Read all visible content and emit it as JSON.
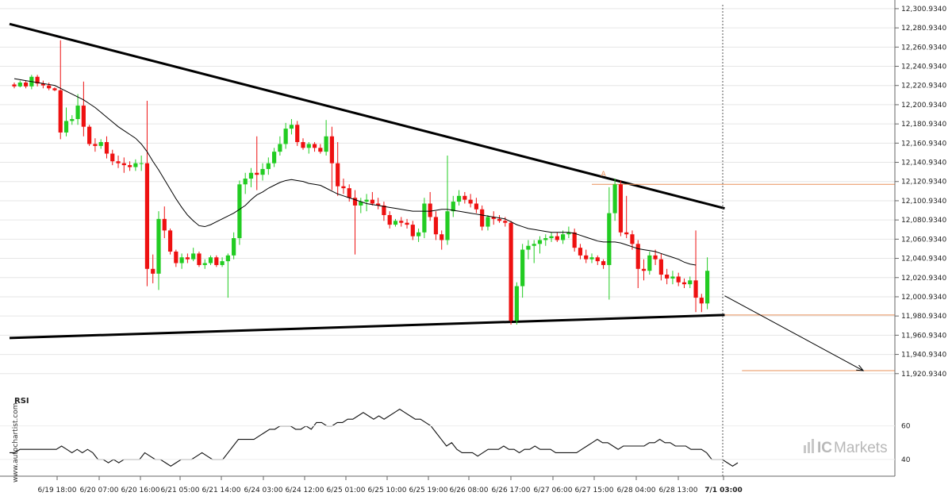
{
  "chart_data": [
    {
      "type": "candlestick",
      "y_axis_side": "right",
      "ylim": [
        11910,
        12305
      ],
      "y_ticks": [
        "12,300.9340",
        "12,280.9340",
        "12,260.9340",
        "12,240.9340",
        "12,220.9340",
        "12,200.9340",
        "12,180.9340",
        "12,160.9340",
        "12,140.9340",
        "12,120.9340",
        "12,100.9340",
        "12,080.9340",
        "12,060.9340",
        "12,040.9340",
        "12,020.9340",
        "12,000.9340",
        "11,980.9340",
        "11,960.9340",
        "11,940.9340",
        "11,920.9340"
      ],
      "x_ticks": [
        "6/19 18:00",
        "6/20 07:00",
        "6/20 16:00",
        "6/21 05:00",
        "6/21 14:00",
        "6/24 03:00",
        "6/24 12:00",
        "6/25 01:00",
        "6/25 10:00",
        "6/25 19:00",
        "6/26 08:00",
        "6/26 17:00",
        "6/27 06:00",
        "6/27 15:00",
        "6/28 04:00",
        "6/28 13:00",
        "7/1 03:00"
      ],
      "highlight_x_tick": "7/1 03:00",
      "up_color": "#22cc22",
      "down_color": "#ee1111",
      "moving_average_color": "#000000",
      "candles": [
        [
          12222,
          12224,
          12218,
          12220
        ],
        [
          12220,
          12226,
          12219,
          12224
        ],
        [
          12224,
          12226,
          12218,
          12220
        ],
        [
          12220,
          12232,
          12217,
          12230
        ],
        [
          12230,
          12232,
          12220,
          12223
        ],
        [
          12223,
          12226,
          12218,
          12221
        ],
        [
          12221,
          12224,
          12216,
          12218
        ],
        [
          12218,
          12219,
          12215,
          12216
        ],
        [
          12216,
          12268,
          12165,
          12172
        ],
        [
          12172,
          12198,
          12168,
          12184
        ],
        [
          12184,
          12190,
          12180,
          12186
        ],
        [
          12186,
          12212,
          12180,
          12200
        ],
        [
          12200,
          12225,
          12168,
          12178
        ],
        [
          12178,
          12180,
          12158,
          12160
        ],
        [
          12160,
          12166,
          12152,
          12158
        ],
        [
          12158,
          12165,
          12155,
          12162
        ],
        [
          12162,
          12168,
          12145,
          12150
        ],
        [
          12150,
          12154,
          12138,
          12142
        ],
        [
          12142,
          12148,
          12135,
          12140
        ],
        [
          12140,
          12146,
          12130,
          12138
        ],
        [
          12138,
          12142,
          12132,
          12136
        ],
        [
          12136,
          12144,
          12132,
          12140
        ],
        [
          12140,
          12148,
          12132,
          12140
        ],
        [
          12140,
          12205,
          12012,
          12030
        ],
        [
          12030,
          12045,
          12015,
          12025
        ],
        [
          12025,
          12090,
          12008,
          12082
        ],
        [
          12082,
          12095,
          12062,
          12070
        ],
        [
          12070,
          12072,
          12045,
          12048
        ],
        [
          12048,
          12050,
          12032,
          12036
        ],
        [
          12036,
          12046,
          12030,
          12042
        ],
        [
          12042,
          12046,
          12036,
          12040
        ],
        [
          12040,
          12052,
          12038,
          12046
        ],
        [
          12046,
          12048,
          12032,
          12034
        ],
        [
          12034,
          12040,
          12030,
          12036
        ],
        [
          12036,
          12044,
          12034,
          12042
        ],
        [
          12042,
          12044,
          12032,
          12034
        ],
        [
          12034,
          12042,
          12032,
          12038
        ],
        [
          12038,
          12046,
          12000,
          12044
        ],
        [
          12044,
          12068,
          12040,
          12062
        ],
        [
          12062,
          12122,
          12055,
          12118
        ],
        [
          12118,
          12130,
          12108,
          12124
        ],
        [
          12124,
          12135,
          12115,
          12130
        ],
        [
          12130,
          12168,
          12112,
          12128
        ],
        [
          12128,
          12140,
          12122,
          12134
        ],
        [
          12134,
          12146,
          12128,
          12140
        ],
        [
          12140,
          12156,
          12136,
          12152
        ],
        [
          12152,
          12168,
          12148,
          12160
        ],
        [
          12160,
          12182,
          12155,
          12176
        ],
        [
          12176,
          12186,
          12170,
          12180
        ],
        [
          12180,
          12184,
          12158,
          12162
        ],
        [
          12162,
          12166,
          12154,
          12156
        ],
        [
          12156,
          12162,
          12150,
          12160
        ],
        [
          12160,
          12162,
          12152,
          12156
        ],
        [
          12156,
          12160,
          12150,
          12152
        ],
        [
          12152,
          12185,
          12148,
          12168
        ],
        [
          12168,
          12178,
          12112,
          12140
        ],
        [
          12140,
          12162,
          12106,
          12116
        ],
        [
          12116,
          12124,
          12108,
          12114
        ],
        [
          12114,
          12118,
          12100,
          12104
        ],
        [
          12104,
          12112,
          12045,
          12096
        ],
        [
          12096,
          12104,
          12088,
          12100
        ],
        [
          12100,
          12108,
          12090,
          12102
        ],
        [
          12102,
          12110,
          12096,
          12098
        ],
        [
          12098,
          12104,
          12092,
          12096
        ],
        [
          12096,
          12100,
          12080,
          12086
        ],
        [
          12086,
          12090,
          12072,
          12076
        ],
        [
          12076,
          12082,
          12074,
          12080
        ],
        [
          12080,
          12084,
          12074,
          12078
        ],
        [
          12078,
          12082,
          12072,
          12076
        ],
        [
          12076,
          12080,
          12060,
          12064
        ],
        [
          12064,
          12072,
          12058,
          12068
        ],
        [
          12068,
          12104,
          12062,
          12098
        ],
        [
          12098,
          12110,
          12080,
          12084
        ],
        [
          12084,
          12090,
          12060,
          12066
        ],
        [
          12066,
          12070,
          12050,
          12060
        ],
        [
          12060,
          12148,
          12055,
          12090
        ],
        [
          12090,
          12106,
          12084,
          12100
        ],
        [
          12100,
          12112,
          12096,
          12106
        ],
        [
          12106,
          12110,
          12098,
          12102
        ],
        [
          12102,
          12108,
          12094,
          12098
        ],
        [
          12098,
          12104,
          12088,
          12092
        ],
        [
          12092,
          12096,
          12070,
          12074
        ],
        [
          12074,
          12086,
          12070,
          12084
        ],
        [
          12084,
          12090,
          12076,
          12082
        ],
        [
          12082,
          12086,
          12078,
          12080
        ],
        [
          12080,
          12084,
          12074,
          12078
        ],
        [
          12078,
          12080,
          11972,
          11976
        ],
        [
          11976,
          12016,
          11972,
          12012
        ],
        [
          12012,
          12056,
          12000,
          12050
        ],
        [
          12050,
          12060,
          12040,
          12054
        ],
        [
          12054,
          12060,
          12036,
          12056
        ],
        [
          12056,
          12064,
          12046,
          12060
        ],
        [
          12060,
          12066,
          12054,
          12062
        ],
        [
          12062,
          12068,
          12058,
          12064
        ],
        [
          12064,
          12068,
          12058,
          12060
        ],
        [
          12060,
          12070,
          12056,
          12066
        ],
        [
          12066,
          12074,
          12062,
          12068
        ],
        [
          12068,
          12072,
          12048,
          12052
        ],
        [
          12052,
          12056,
          12040,
          12044
        ],
        [
          12044,
          12050,
          12036,
          12040
        ],
        [
          12040,
          12046,
          12036,
          12042
        ],
        [
          12042,
          12044,
          12034,
          12038
        ],
        [
          12038,
          12040,
          12030,
          12034
        ],
        [
          12034,
          12115,
          11998,
          12088
        ],
        [
          12088,
          12124,
          12080,
          12118
        ],
        [
          12118,
          12122,
          12064,
          12068
        ],
        [
          12068,
          12106,
          12062,
          12066
        ],
        [
          12066,
          12070,
          12050,
          12056
        ],
        [
          12056,
          12060,
          12010,
          12030
        ],
        [
          12030,
          12040,
          12018,
          12028
        ],
        [
          12028,
          12048,
          12024,
          12044
        ],
        [
          12044,
          12050,
          12034,
          12040
        ],
        [
          12040,
          12046,
          12018,
          12024
        ],
        [
          12024,
          12030,
          12014,
          12020
        ],
        [
          12020,
          12028,
          12014,
          12022
        ],
        [
          12022,
          12026,
          12012,
          12016
        ],
        [
          12016,
          12020,
          12010,
          12014
        ],
        [
          12014,
          12022,
          12010,
          12018
        ],
        [
          12018,
          12070,
          11985,
          12000
        ],
        [
          12000,
          12004,
          11985,
          11994
        ],
        [
          11994,
          12042,
          11988,
          12028
        ]
      ],
      "moving_average": [
        12228,
        12227,
        12226,
        12225,
        12224,
        12223,
        12222,
        12221,
        12218,
        12215,
        12212,
        12209,
        12206,
        12202,
        12198,
        12193,
        12188,
        12183,
        12178,
        12174,
        12170,
        12166,
        12160,
        12152,
        12142,
        12133,
        12123,
        12113,
        12103,
        12094,
        12086,
        12080,
        12075,
        12074,
        12076,
        12079,
        12082,
        12085,
        12088,
        12092,
        12096,
        12102,
        12107,
        12110,
        12114,
        12117,
        12120,
        12122,
        12123,
        12122,
        12121,
        12119,
        12118,
        12117,
        12114,
        12111,
        12108,
        12106,
        12104,
        12102,
        12100,
        12098,
        12097,
        12096,
        12095,
        12094,
        12093,
        12092,
        12091,
        12090,
        12090,
        12090,
        12090,
        12091,
        12092,
        12092,
        12091,
        12090,
        12089,
        12088,
        12087,
        12086,
        12085,
        12084,
        12083,
        12082,
        12079,
        12076,
        12074,
        12072,
        12071,
        12070,
        12069,
        12068,
        12068,
        12068,
        12068,
        12067,
        12065,
        12063,
        12061,
        12059,
        12058,
        12058,
        12058,
        12057,
        12055,
        12053,
        12051,
        12050,
        12049,
        12048,
        12046,
        12044,
        12042,
        12040,
        12037,
        12035,
        12034
      ],
      "annotations": [
        {
          "type": "trendline",
          "role": "resistance",
          "from": {
            "i": 0,
            "y": 12285
          },
          "to": {
            "i": 123,
            "y": 12093
          }
        },
        {
          "type": "trendline",
          "role": "support",
          "from": {
            "i": 0,
            "y": 11958
          },
          "to": {
            "i": 123,
            "y": 11982
          }
        },
        {
          "type": "level",
          "y": 12118,
          "color": "#e8915a",
          "from_i": 100
        },
        {
          "type": "level",
          "y": 11982,
          "color": "#e8915a",
          "from_i": 123
        },
        {
          "type": "level",
          "y": 11924,
          "color": "#e8915a",
          "from_i": 126
        },
        {
          "type": "arrow",
          "from": {
            "i": 123,
            "y": 12002
          },
          "to": {
            "i": 147,
            "y": 11924
          }
        },
        {
          "type": "marker",
          "label": "A",
          "i": 102,
          "y": 12124,
          "color": "#e8915a"
        }
      ],
      "current_time_tick": "7/1 03:00"
    },
    {
      "type": "line",
      "title": "RSI",
      "ylim": [
        30,
        75
      ],
      "y_ticks": [
        "60",
        "40"
      ],
      "values": [
        44,
        44,
        46,
        46,
        46,
        46,
        46,
        46,
        46,
        46,
        48,
        46,
        44,
        46,
        44,
        46,
        44,
        40,
        40,
        38,
        40,
        38,
        40,
        40,
        40,
        40,
        44,
        42,
        40,
        40,
        38,
        36,
        38,
        40,
        40,
        40,
        42,
        44,
        42,
        40,
        40,
        40,
        44,
        48,
        52,
        52,
        52,
        52,
        54,
        56,
        58,
        58,
        60,
        60,
        60,
        58,
        58,
        60,
        58,
        62,
        62,
        60,
        60,
        62,
        62,
        64,
        64,
        66,
        68,
        66,
        64,
        66,
        64,
        66,
        68,
        70,
        68,
        66,
        64,
        64,
        62,
        60,
        56,
        52,
        48,
        50,
        46,
        44,
        44,
        44,
        42,
        44,
        46,
        46,
        46,
        48,
        46,
        46,
        44,
        46,
        46,
        48,
        46,
        46,
        46,
        44,
        44,
        44,
        44,
        44,
        46,
        48,
        50,
        52,
        50,
        50,
        48,
        46,
        48,
        48,
        48,
        48,
        48,
        50,
        50,
        52,
        50,
        50,
        48,
        48,
        48,
        46,
        46,
        46,
        44,
        40,
        40,
        40,
        38,
        36,
        38
      ]
    }
  ],
  "watermark": "www.autochartist.com",
  "brand": {
    "ic": "IC",
    "markets": "Markets"
  }
}
